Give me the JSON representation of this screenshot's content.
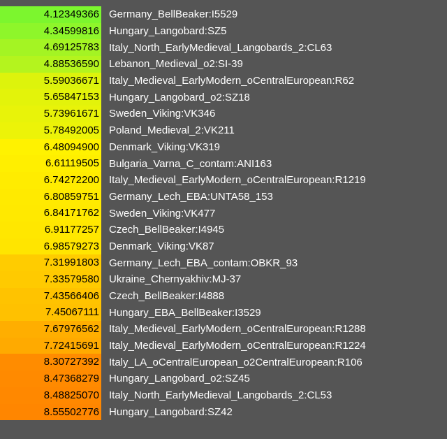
{
  "results": [
    {
      "distance": "4.12349366",
      "sample": "Germany_BellBeaker:I5529",
      "color": "#7cf62e"
    },
    {
      "distance": "4.34599816",
      "sample": "Hungary_Langobard:SZ5",
      "color": "#8ef62a"
    },
    {
      "distance": "4.69125783",
      "sample": "Italy_North_EarlyMedieval_Langobards_2:CL63",
      "color": "#a4f423"
    },
    {
      "distance": "4.88536590",
      "sample": "Lebanon_Medieval_o2:SI-39",
      "color": "#b4f41e"
    },
    {
      "distance": "5.59036671",
      "sample": "Italy_Medieval_EarlyModern_oCentralEuropean:R62",
      "color": "#ddf30c"
    },
    {
      "distance": "5.65847153",
      "sample": "Hungary_Langobard_o2:SZ18",
      "color": "#e3f30a"
    },
    {
      "distance": "5.73961671",
      "sample": "Sweden_Viking:VK346",
      "color": "#e8f309"
    },
    {
      "distance": "5.78492005",
      "sample": "Poland_Medieval_2:VK211",
      "color": "#ecf308"
    },
    {
      "distance": "6.48094900",
      "sample": "Denmark_Viking:VK319",
      "color": "#fff200"
    },
    {
      "distance": "6.61119505",
      "sample": "Bulgaria_Varna_C_contam:ANI163",
      "color": "#ffef00"
    },
    {
      "distance": "6.74272200",
      "sample": "Italy_Medieval_EarlyModern_oCentralEuropean:R1219",
      "color": "#ffec00"
    },
    {
      "distance": "6.80859751",
      "sample": "Germany_Lech_EBA:UNTA58_153",
      "color": "#ffea00"
    },
    {
      "distance": "6.84171762",
      "sample": "Sweden_Viking:VK477",
      "color": "#ffe900"
    },
    {
      "distance": "6.91177257",
      "sample": "Czech_BellBeaker:I4945",
      "color": "#ffe700"
    },
    {
      "distance": "6.98579273",
      "sample": "Denmark_Viking:VK87",
      "color": "#ffe500"
    },
    {
      "distance": "7.31991803",
      "sample": "Germany_Lech_EBA_contam:OBKR_93",
      "color": "#ffcc00"
    },
    {
      "distance": "7.33579580",
      "sample": "Ukraine_Chernyakhiv:MJ-37",
      "color": "#ffca00"
    },
    {
      "distance": "7.43566406",
      "sample": "Czech_BellBeaker:I4888",
      "color": "#ffc300"
    },
    {
      "distance": "7.45067111",
      "sample": "Hungary_EBA_BellBeaker:I3529",
      "color": "#ffc100"
    },
    {
      "distance": "7.67976562",
      "sample": "Italy_Medieval_EarlyModern_oCentralEuropean:R1288",
      "color": "#ffae00"
    },
    {
      "distance": "7.72415691",
      "sample": "Italy_Medieval_EarlyModern_oCentralEuropean:R1224",
      "color": "#ffaa00"
    },
    {
      "distance": "8.30727392",
      "sample": "Italy_LA_oCentralEuropean_o2CentralEuropean:R106",
      "color": "#ff8c00"
    },
    {
      "distance": "8.47368279",
      "sample": "Hungary_Langobard_o2:SZ45",
      "color": "#ff8a00"
    },
    {
      "distance": "8.48825070",
      "sample": "Italy_North_EarlyMedieval_Langobards_2:CL53",
      "color": "#ff8800"
    },
    {
      "distance": "8.55502776",
      "sample": "Hungary_Langobard:SZ42",
      "color": "#ff8600"
    }
  ]
}
